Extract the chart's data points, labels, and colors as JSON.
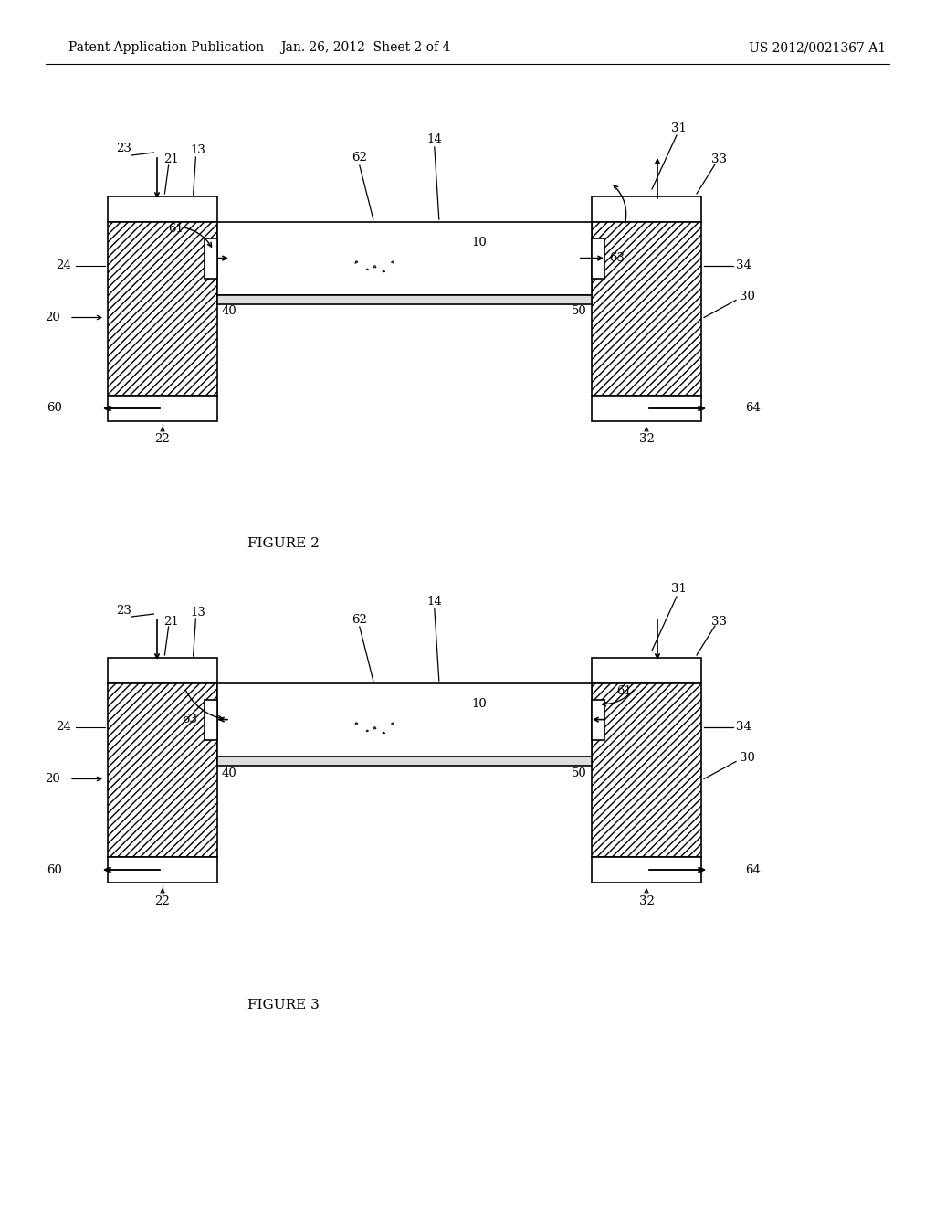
{
  "bg_color": "#ffffff",
  "header_left": "Patent Application Publication",
  "header_mid": "Jan. 26, 2012  Sheet 2 of 4",
  "header_right": "US 2012/0021367 A1",
  "fig2_caption": "FIGURE 2",
  "fig3_caption": "FIGURE 3",
  "line_color": "#000000",
  "line_width": 1.2
}
